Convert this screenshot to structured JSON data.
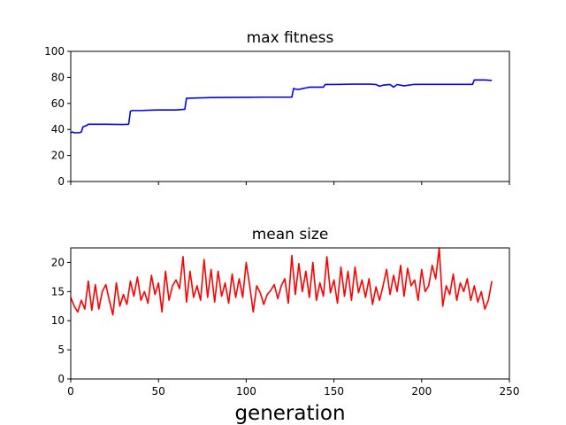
{
  "chart_data": [
    {
      "type": "line",
      "title": "max fitness",
      "xlabel": "",
      "ylabel": "",
      "xlim": [
        0,
        250
      ],
      "ylim": [
        0,
        100
      ],
      "yticks": [
        0,
        20,
        40,
        60,
        80,
        100
      ],
      "xticks": [
        0,
        50,
        100,
        150,
        200,
        250
      ],
      "show_x_tick_labels": false,
      "grid": false,
      "series": [
        {
          "color": "#0000ff",
          "x": [
            0,
            1,
            2,
            3,
            4,
            5,
            6,
            7,
            8,
            9,
            10,
            20,
            30,
            33,
            34,
            35,
            40,
            45,
            50,
            55,
            60,
            65,
            66,
            67,
            80,
            100,
            110,
            126,
            127,
            128,
            130,
            135,
            136,
            144,
            145,
            150,
            160,
            170,
            174,
            176,
            178,
            182,
            184,
            186,
            190,
            195,
            200,
            210,
            220,
            228,
            229,
            230,
            236,
            240
          ],
          "values": [
            37.5,
            38,
            37.5,
            37.5,
            37.5,
            37.5,
            38,
            42,
            42.5,
            43,
            44,
            44,
            43.8,
            44,
            54,
            54.5,
            54.5,
            54.8,
            55,
            55,
            55,
            55.5,
            64,
            64,
            64.5,
            64.7,
            64.8,
            64.8,
            71.5,
            71,
            70.8,
            72.2,
            72.5,
            72.5,
            74.5,
            74.5,
            74.8,
            74.8,
            74.5,
            73.2,
            74,
            74.5,
            72.5,
            74.5,
            73.5,
            74.5,
            74.6,
            74.6,
            74.6,
            74.6,
            74.6,
            78,
            78,
            77.7
          ]
        }
      ]
    },
    {
      "type": "line",
      "title": "mean size",
      "xlabel": "generation",
      "ylabel": "",
      "xlim": [
        0,
        250
      ],
      "ylim": [
        0,
        22.5
      ],
      "yticks": [
        0,
        5,
        10,
        15,
        20
      ],
      "xticks": [
        0,
        50,
        100,
        150,
        200,
        250
      ],
      "grid": false,
      "series": [
        {
          "color": "#ff0000",
          "x": [
            0,
            2,
            4,
            6,
            8,
            10,
            12,
            14,
            16,
            18,
            20,
            22,
            24,
            26,
            28,
            30,
            32,
            34,
            36,
            38,
            40,
            42,
            44,
            46,
            48,
            50,
            52,
            54,
            56,
            58,
            60,
            62,
            64,
            66,
            68,
            70,
            72,
            74,
            76,
            78,
            80,
            82,
            84,
            86,
            88,
            90,
            92,
            94,
            96,
            98,
            100,
            102,
            104,
            106,
            108,
            110,
            112,
            114,
            116,
            118,
            120,
            122,
            124,
            126,
            128,
            130,
            132,
            134,
            136,
            138,
            140,
            142,
            144,
            146,
            148,
            150,
            152,
            154,
            156,
            158,
            160,
            162,
            164,
            166,
            168,
            170,
            172,
            174,
            176,
            178,
            180,
            182,
            184,
            186,
            188,
            190,
            192,
            194,
            196,
            198,
            200,
            202,
            204,
            206,
            208,
            210,
            212,
            214,
            216,
            218,
            220,
            222,
            224,
            226,
            228,
            230,
            232,
            234,
            236,
            238,
            240
          ],
          "values": [
            14,
            12.5,
            11.5,
            13.5,
            12,
            16.8,
            11.8,
            16.2,
            12,
            15,
            16.2,
            13.5,
            11,
            16.5,
            12.5,
            14.5,
            12.8,
            16.8,
            14.2,
            17.5,
            13.5,
            15,
            13,
            17.8,
            14.5,
            16.5,
            11.5,
            18.5,
            13.5,
            16,
            17,
            15.5,
            21,
            13.2,
            18.5,
            14,
            16,
            13.5,
            20.5,
            14,
            18.8,
            13.2,
            18.5,
            14.2,
            16.5,
            13,
            18,
            14,
            17.2,
            14,
            20,
            16,
            11.5,
            16,
            14.8,
            12.8,
            14.5,
            15.2,
            16.2,
            13.8,
            16,
            17.2,
            13,
            21.2,
            14.5,
            19.8,
            15,
            18.5,
            14,
            20,
            13.5,
            16.5,
            14.2,
            21,
            14.8,
            17,
            13,
            19.2,
            14.2,
            18.5,
            13.5,
            19.2,
            14.8,
            17,
            14,
            17.2,
            12.8,
            15.8,
            13.5,
            16,
            18.8,
            14.5,
            17.8,
            15,
            19.5,
            14.2,
            19,
            16,
            17,
            13.5,
            18.8,
            15,
            16,
            19.5,
            17.2,
            22.5,
            12.5,
            16,
            14.5,
            18,
            13.5,
            16.5,
            15,
            17.2,
            13.5,
            16,
            13.2,
            15,
            12,
            13.5,
            16.8
          ]
        }
      ]
    }
  ]
}
